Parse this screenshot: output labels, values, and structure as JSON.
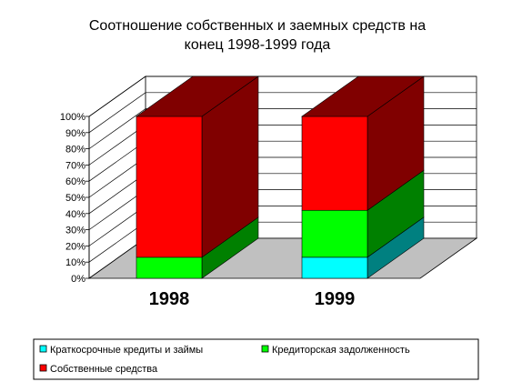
{
  "chart_data": {
    "type": "bar",
    "stacked": "percent",
    "three_d": true,
    "title": "Соотношение собственных и заемных средств  на конец 1998-1999 года",
    "title_lines": [
      "Соотношение собственных и заемных средств  на",
      "конец 1998-1999 года"
    ],
    "categories": [
      "1998",
      "1999"
    ],
    "series": [
      {
        "name": "Краткосрочные кредиты и займы",
        "values": [
          0,
          13
        ],
        "color": "#00FFFF",
        "side_color": "#008080"
      },
      {
        "name": "Кредиторская задолженность",
        "values": [
          13,
          29
        ],
        "color": "#00FF00",
        "side_color": "#008000"
      },
      {
        "name": "Собственные средства",
        "values": [
          87,
          58
        ],
        "color": "#FF0000",
        "side_color": "#800000"
      }
    ],
    "y_ticks": [
      "0%",
      "10%",
      "20%",
      "30%",
      "40%",
      "50%",
      "60%",
      "70%",
      "80%",
      "90%",
      "100%"
    ],
    "ylim": [
      0,
      100
    ],
    "grid": true,
    "legend_position": "bottom"
  }
}
